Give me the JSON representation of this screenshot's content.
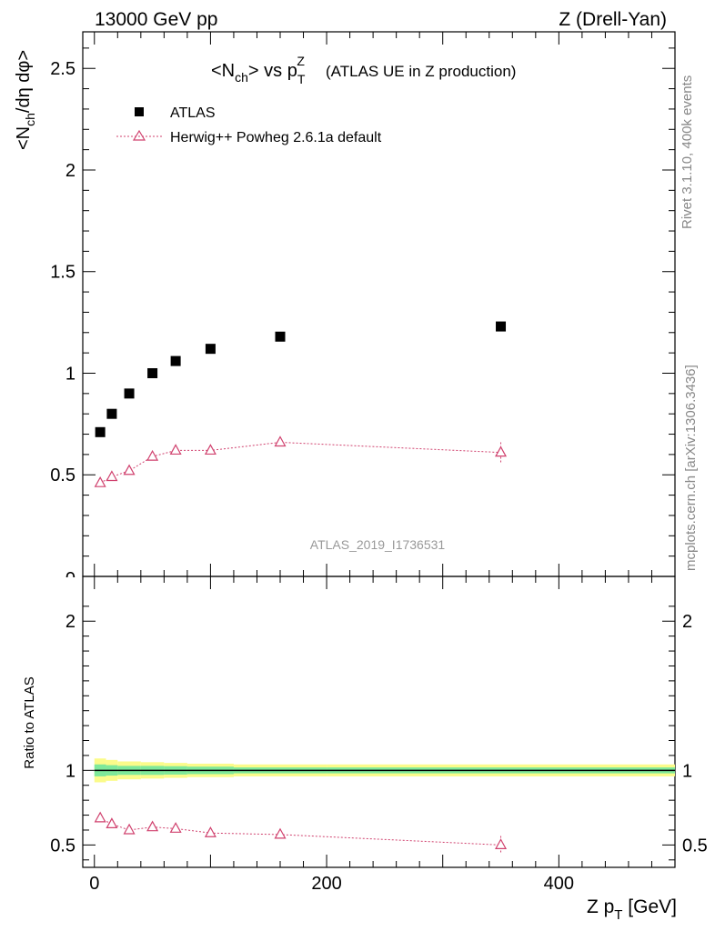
{
  "header": {
    "left": "13000 GeV pp",
    "right": "Z (Drell-Yan)"
  },
  "title": {
    "main": "<N",
    "main_sub": "ch",
    "main_mid": "> vs p",
    "main_sub2": "T",
    "main_sup": "Z",
    "paren": "(ATLAS UE in Z production)"
  },
  "ylabel_top": "<N_ch/dη dφ>",
  "ylabel_bottom": "Ratio to ATLAS",
  "xlabel": "Z p_T [GeV]",
  "watermark": "ATLAS_2019_I1736531",
  "side_text_top": "Rivet 3.1.10,  400k events",
  "side_text_bottom": "mcplots.cern.ch [arXiv:1306.3436]",
  "colors": {
    "data": "#000000",
    "mc": "#d0416e",
    "band_inner": "#7ee89a",
    "band_outer": "#fbfb8a"
  },
  "chart_data": [
    {
      "type": "scatter",
      "xlim": [
        -10,
        500
      ],
      "ylim": [
        0,
        2.68
      ],
      "y_ticks": [
        "0.5",
        "1",
        "1.5",
        "2",
        "2.5"
      ],
      "series": [
        {
          "name": "ATLAS",
          "x": [
            5,
            15,
            30,
            50,
            70,
            100,
            160,
            350
          ],
          "y": [
            0.71,
            0.8,
            0.9,
            1.0,
            1.06,
            1.12,
            1.18,
            1.23
          ]
        },
        {
          "name": "Herwig++ Powheg 2.6.1a default",
          "x": [
            5,
            15,
            30,
            50,
            70,
            100,
            160,
            350
          ],
          "y": [
            0.46,
            0.49,
            0.52,
            0.59,
            0.62,
            0.62,
            0.66,
            0.61
          ],
          "yerr": [
            0.01,
            0.01,
            0.01,
            0.01,
            0.01,
            0.01,
            0.015,
            0.05
          ]
        }
      ]
    },
    {
      "type": "line",
      "xlim": [
        -10,
        500
      ],
      "ylim": [
        0.35,
        2.3
      ],
      "x_ticks": [
        "0",
        "200",
        "400"
      ],
      "y_ticks": [
        "0.5",
        "1",
        "2"
      ],
      "reference": 1.0,
      "bands": {
        "x_edges": [
          0,
          10,
          20,
          40,
          60,
          80,
          120,
          200,
          500
        ],
        "inner": [
          0.04,
          0.035,
          0.03,
          0.03,
          0.028,
          0.025,
          0.02,
          0.02
        ],
        "outer": [
          0.08,
          0.07,
          0.06,
          0.055,
          0.05,
          0.045,
          0.04,
          0.04
        ]
      },
      "series": [
        {
          "name": "Herwig++ Powheg 2.6.1a default",
          "x": [
            5,
            15,
            30,
            50,
            70,
            100,
            160,
            350
          ],
          "y": [
            0.68,
            0.64,
            0.6,
            0.62,
            0.61,
            0.58,
            0.57,
            0.5
          ],
          "yerr": [
            0.01,
            0.01,
            0.01,
            0.01,
            0.01,
            0.01,
            0.02,
            0.06
          ]
        }
      ]
    }
  ]
}
